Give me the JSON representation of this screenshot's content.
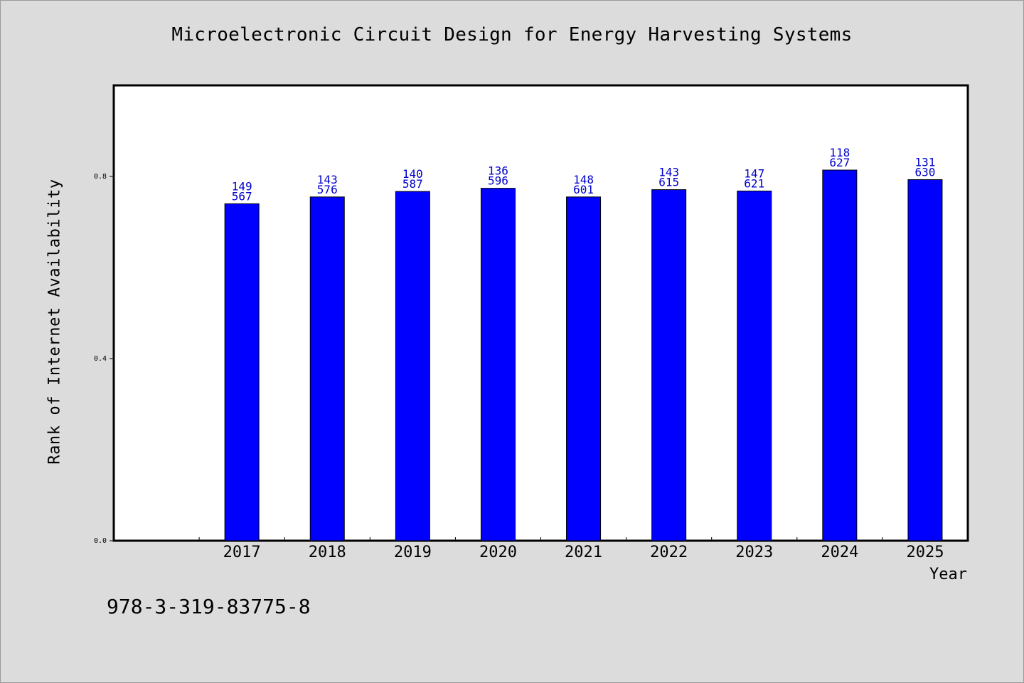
{
  "chart_data": {
    "type": "bar",
    "title": "Microelectronic Circuit Design for Energy Harvesting Systems",
    "xlabel": "Year",
    "ylabel": "Rank of Internet Availability",
    "categories": [
      "2017",
      "2018",
      "2019",
      "2020",
      "2021",
      "2022",
      "2023",
      "2024",
      "2025"
    ],
    "values": [
      0.74,
      0.755,
      0.767,
      0.774,
      0.755,
      0.771,
      0.768,
      0.814,
      0.793
    ],
    "bar_labels": [
      [
        "149",
        "567"
      ],
      [
        "143",
        "576"
      ],
      [
        "140",
        "587"
      ],
      [
        "136",
        "596"
      ],
      [
        "148",
        "601"
      ],
      [
        "143",
        "615"
      ],
      [
        "147",
        "621"
      ],
      [
        "118",
        "627"
      ],
      [
        "131",
        "630"
      ]
    ],
    "ylim": [
      0,
      1.0
    ],
    "yticks": [
      0.0,
      0.4,
      0.8
    ],
    "ytick_labels": [
      "0.0",
      "0.4",
      "0.8"
    ],
    "grid": false,
    "bar_color": "#0000ff",
    "label_color": "#0000cc"
  },
  "footer": {
    "isbn": "978-3-319-83775-8"
  }
}
